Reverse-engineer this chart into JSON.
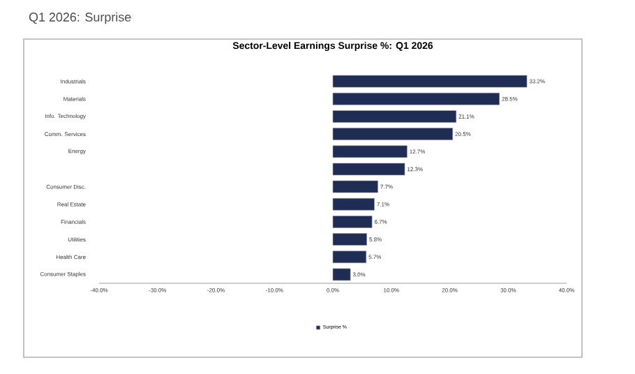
{
  "chart_data": {
    "type": "bar",
    "orientation": "horizontal",
    "title": "Q1 2026: Surprise",
    "subtitle": "Sector-Level Earnings Surprise %: Q1 2026",
    "categories": [
      "Industrials",
      "Materials",
      "Info. Technology",
      "Comm. Services",
      "Energy",
      null,
      "Consumer Disc.",
      "Real Estate",
      "Financials",
      "Utilities",
      "Health Care",
      "Consumer Staples"
    ],
    "series": [
      {
        "name": "Surprise %",
        "color": "#1f2d55",
        "values": [
          33.2,
          28.5,
          21.1,
          20.5,
          12.7,
          12.3,
          7.7,
          7.1,
          6.7,
          5.8,
          5.7,
          3.0
        ],
        "value_labels": [
          "33.2%",
          "28.5%",
          "21.1%",
          "20.5%",
          "12.7%",
          "12.3%",
          "7.7%",
          "7.1%",
          "6.7%",
          "5.8%",
          "5.7%",
          "3.0%"
        ]
      }
    ],
    "xlim": [
      -40,
      40
    ],
    "xticks": [
      {
        "value": -40,
        "label": "-40.0%"
      },
      {
        "value": -30,
        "label": "-30.0%"
      },
      {
        "value": -20,
        "label": "-20.0%"
      },
      {
        "value": -10,
        "label": "-10.0%"
      },
      {
        "value": 0,
        "label": "0.0%"
      },
      {
        "value": 10,
        "label": "10.0%"
      },
      {
        "value": 20,
        "label": "20.0%"
      },
      {
        "value": 30,
        "label": "30.0%"
      },
      {
        "value": 40,
        "label": "40.0%"
      }
    ],
    "grid": false,
    "legend": "bottom"
  }
}
